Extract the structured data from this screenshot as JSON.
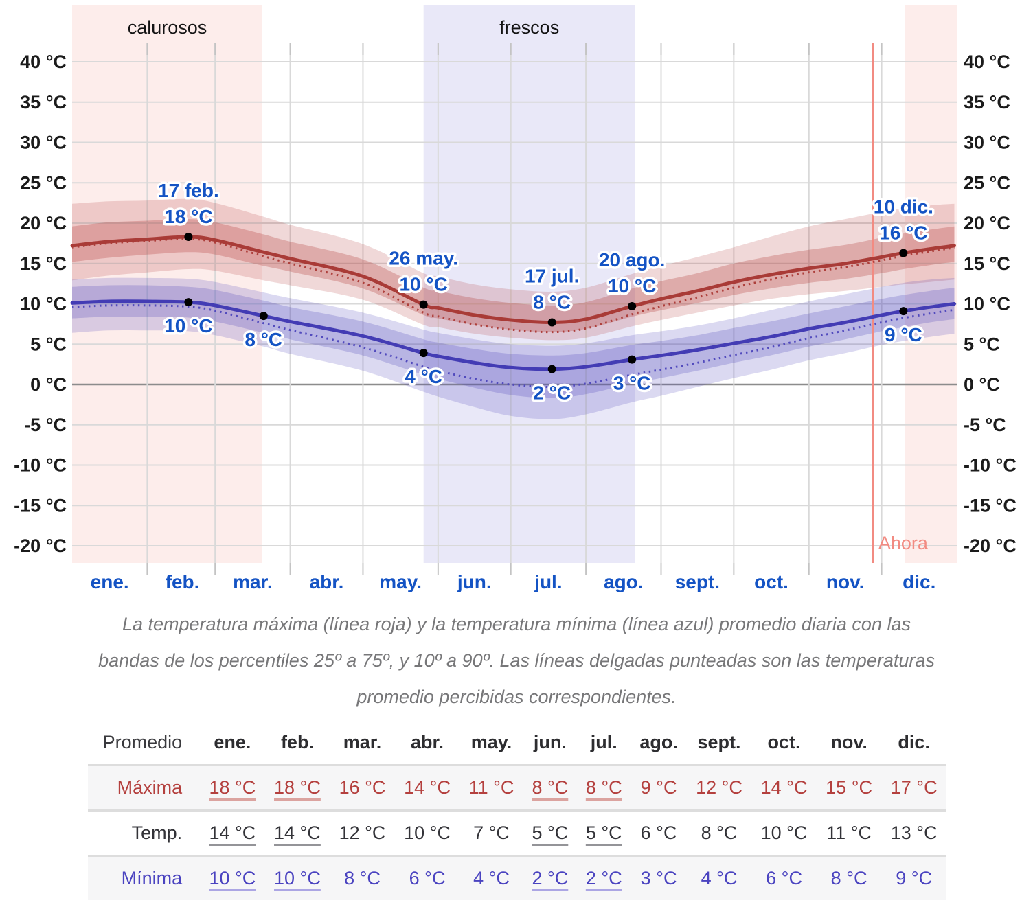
{
  "colors": {
    "max_line": "#a93b37",
    "max_dotted": "#ad3f3b",
    "max_band": "#b23e3a",
    "min_line": "#433cb4",
    "min_dotted": "#514abd",
    "min_band": "#4a43b8",
    "warm_season_bg": "#fdedeb",
    "cool_season_bg": "#e9e8f8",
    "link_blue": "#1453c4",
    "now_line": "#f28b82",
    "grid": "#d9d9d9",
    "grid_zero": "#8c8c8c",
    "tick": "#c4c4c4",
    "axis_text": "#1b1b1b",
    "caption_gray": "#777779",
    "table_maxima": "#b4403e",
    "table_temp": "#333338",
    "table_minima": "#4a43c0"
  },
  "chart_data": {
    "type": "line",
    "title": "",
    "x": {
      "unit": "day_of_year",
      "months": [
        "ene.",
        "feb.",
        "mar.",
        "abr.",
        "may.",
        "jun.",
        "jul.",
        "ago.",
        "sept.",
        "oct.",
        "nov.",
        "dic."
      ],
      "month_start_days": [
        0,
        31,
        59,
        90,
        120,
        151,
        181,
        212,
        243,
        273,
        304,
        334
      ],
      "month_mid_days": [
        15.5,
        45.5,
        74.5,
        105,
        135.5,
        166,
        196.5,
        227.5,
        258,
        288.5,
        319,
        349.5
      ]
    },
    "y": {
      "label": "°C",
      "min": -20,
      "max": 40,
      "tick_step": 5,
      "grid": true,
      "tick_labels": [
        "40 °C",
        "35 °C",
        "30 °C",
        "25 °C",
        "20 °C",
        "15 °C",
        "10 °C",
        "5 °C",
        "0 °C",
        "-5 °C",
        "-10 °C",
        "-15 °C",
        "-20 °C"
      ]
    },
    "days": [
      0,
      15,
      31,
      48,
      59,
      79,
      90,
      120,
      145,
      151,
      166,
      181,
      198,
      212,
      231,
      243,
      258,
      273,
      288,
      304,
      319,
      334,
      343,
      354,
      364
    ],
    "series": [
      {
        "name": "temperatura maxima",
        "mean": [
          17.2,
          17.7,
          18.0,
          18.3,
          17.9,
          16.4,
          15.6,
          13.4,
          9.9,
          9.5,
          8.6,
          8.0,
          7.7,
          8.1,
          9.7,
          10.6,
          11.6,
          12.7,
          13.6,
          14.4,
          15.0,
          15.8,
          16.3,
          16.8,
          17.2
        ],
        "perceived": [
          17.0,
          17.5,
          17.8,
          18.05,
          17.6,
          15.9,
          15.0,
          12.6,
          8.9,
          8.45,
          7.45,
          6.8,
          6.5,
          6.95,
          8.7,
          9.7,
          10.8,
          12.0,
          13.0,
          13.9,
          14.55,
          15.4,
          15.95,
          16.5,
          16.95
        ],
        "p75": [
          19.6,
          20.1,
          20.3,
          20.5,
          20.1,
          18.6,
          17.7,
          15.5,
          12.0,
          11.6,
          10.7,
          10.1,
          9.8,
          10.2,
          11.9,
          12.8,
          13.8,
          15.0,
          15.9,
          16.7,
          17.3,
          18.2,
          18.7,
          19.2,
          19.6
        ],
        "p25": [
          15.2,
          15.7,
          16.1,
          16.4,
          16.1,
          14.7,
          14.0,
          11.9,
          8.6,
          8.2,
          7.4,
          6.8,
          6.5,
          6.9,
          8.4,
          9.2,
          10.1,
          11.1,
          11.9,
          12.6,
          13.1,
          13.8,
          14.3,
          14.8,
          15.2
        ],
        "p90": [
          22.4,
          22.7,
          22.8,
          23.0,
          22.5,
          20.8,
          19.8,
          17.4,
          13.8,
          13.4,
          12.4,
          11.8,
          11.5,
          12.0,
          13.7,
          14.7,
          15.8,
          17.0,
          18.3,
          19.6,
          20.5,
          21.4,
          21.8,
          22.2,
          22.4
        ],
        "p10": [
          12.9,
          13.5,
          13.9,
          14.3,
          14.1,
          12.9,
          12.3,
          10.5,
          7.4,
          7.1,
          6.3,
          5.8,
          5.5,
          5.8,
          7.2,
          8.0,
          8.9,
          9.8,
          10.6,
          11.2,
          11.6,
          12.1,
          12.4,
          12.7,
          13.0
        ]
      },
      {
        "name": "temperatura minima",
        "mean": [
          10.1,
          10.3,
          10.3,
          10.2,
          9.8,
          8.5,
          7.8,
          6.0,
          3.9,
          3.5,
          2.7,
          2.1,
          1.9,
          2.2,
          3.1,
          3.6,
          4.3,
          5.1,
          5.9,
          6.9,
          7.7,
          8.6,
          9.1,
          9.6,
          10.0
        ],
        "perceived": [
          9.6,
          9.8,
          9.8,
          9.65,
          9.15,
          7.6,
          6.75,
          4.6,
          2.2,
          1.7,
          0.7,
          0.0,
          -0.3,
          0.1,
          1.2,
          1.85,
          2.7,
          3.65,
          4.6,
          5.75,
          6.7,
          7.7,
          8.25,
          8.8,
          9.25
        ],
        "p75": [
          12.1,
          12.3,
          12.3,
          12.1,
          11.7,
          10.4,
          9.6,
          7.8,
          5.6,
          5.2,
          4.4,
          3.8,
          3.6,
          3.9,
          4.9,
          5.4,
          6.1,
          7.0,
          7.8,
          8.8,
          9.7,
          10.6,
          11.1,
          11.6,
          12.0
        ],
        "p25": [
          8.2,
          8.4,
          8.4,
          8.3,
          7.8,
          6.4,
          5.6,
          3.6,
          1.2,
          0.7,
          -0.4,
          -1.3,
          -1.7,
          -1.2,
          0.1,
          0.8,
          1.7,
          2.7,
          3.6,
          4.7,
          5.6,
          6.6,
          7.1,
          7.7,
          8.1
        ],
        "p90": [
          13.0,
          13.2,
          13.2,
          13.1,
          12.7,
          11.4,
          10.7,
          8.9,
          6.8,
          6.4,
          5.6,
          5.0,
          4.8,
          5.1,
          6.1,
          6.6,
          7.3,
          8.2,
          9.2,
          10.3,
          11.2,
          12.1,
          12.6,
          13.0,
          13.2
        ],
        "p10": [
          6.4,
          6.7,
          6.7,
          6.6,
          6.1,
          4.7,
          3.8,
          1.7,
          -0.9,
          -1.5,
          -2.8,
          -3.9,
          -4.3,
          -3.7,
          -2.2,
          -1.4,
          -0.3,
          0.8,
          1.8,
          3.0,
          3.9,
          4.9,
          5.4,
          5.9,
          6.3
        ]
      }
    ],
    "key_points": [
      {
        "series": 0,
        "day": 48,
        "temp": 18.3,
        "date_label": "17 feb.",
        "value_label": "18 °C",
        "pos": "above"
      },
      {
        "series": 1,
        "day": 48,
        "temp": 10.2,
        "value_label": "10 °C",
        "pos": "below"
      },
      {
        "series": 1,
        "day": 79,
        "temp": 8.5,
        "value_label": "8 °C",
        "pos": "below"
      },
      {
        "series": 0,
        "day": 145,
        "temp": 9.9,
        "date_label": "26 may.",
        "value_label": "10 °C",
        "pos": "above"
      },
      {
        "series": 1,
        "day": 145,
        "temp": 3.9,
        "value_label": "4 °C",
        "pos": "below"
      },
      {
        "series": 0,
        "day": 198,
        "temp": 7.7,
        "date_label": "17 jul.",
        "value_label": "8 °C",
        "pos": "above"
      },
      {
        "series": 1,
        "day": 198,
        "temp": 1.9,
        "value_label": "2 °C",
        "pos": "below"
      },
      {
        "series": 0,
        "day": 231,
        "temp": 9.7,
        "date_label": "20 ago.",
        "value_label": "10 °C",
        "pos": "above"
      },
      {
        "series": 1,
        "day": 231,
        "temp": 3.1,
        "value_label": "3 °C",
        "pos": "below"
      },
      {
        "series": 0,
        "day": 343,
        "temp": 16.3,
        "date_label": "10 dic.",
        "value_label": "16 °C",
        "pos": "above"
      },
      {
        "series": 1,
        "day": 343,
        "temp": 9.1,
        "value_label": "9 °C",
        "pos": "below"
      }
    ],
    "seasons": [
      {
        "label": "calurosos",
        "start_day": 0,
        "end_day": 78.5,
        "kind": "warm"
      },
      {
        "label": "frescos",
        "start_day": 145,
        "end_day": 232.3,
        "kind": "cool"
      },
      {
        "label": "",
        "start_day": 343.5,
        "end_day": 365,
        "kind": "warm"
      }
    ],
    "now_marker": {
      "day": 330.4,
      "label": "Ahora"
    },
    "bands_note": "percentiles 25-75 (inner) y 10-90 (outer)"
  },
  "caption": {
    "lines": [
      "La temperatura máxima (línea roja) y la temperatura mínima (línea azul) promedio diaria con las",
      "bandas de los percentiles 25º a 75º, y 10º a 90º. Las líneas delgadas punteadas son las temperaturas",
      "promedio percibidas correspondientes."
    ]
  },
  "table": {
    "header": [
      "Promedio",
      "ene.",
      "feb.",
      "mar.",
      "abr.",
      "may.",
      "jun.",
      "jul.",
      "ago.",
      "sept.",
      "oct.",
      "nov.",
      "dic."
    ],
    "rows": [
      {
        "label": "Máxima",
        "key": "maxima",
        "values": [
          "18 °C",
          "18 °C",
          "16 °C",
          "14 °C",
          "11 °C",
          "8 °C",
          "8 °C",
          "9 °C",
          "12 °C",
          "14 °C",
          "15 °C",
          "17 °C"
        ],
        "linked": [
          true,
          true,
          false,
          false,
          false,
          true,
          true,
          false,
          false,
          false,
          false,
          false
        ]
      },
      {
        "label": "Temp.",
        "key": "temp",
        "values": [
          "14 °C",
          "14 °C",
          "12 °C",
          "10 °C",
          "7 °C",
          "5 °C",
          "5 °C",
          "6 °C",
          "8 °C",
          "10 °C",
          "11 °C",
          "13 °C"
        ],
        "linked": [
          true,
          true,
          false,
          false,
          false,
          true,
          true,
          false,
          false,
          false,
          false,
          false
        ]
      },
      {
        "label": "Mínima",
        "key": "minima",
        "values": [
          "10 °C",
          "10 °C",
          "8 °C",
          "6 °C",
          "4 °C",
          "2 °C",
          "2 °C",
          "3 °C",
          "4 °C",
          "6 °C",
          "8 °C",
          "9 °C"
        ],
        "linked": [
          true,
          true,
          false,
          false,
          false,
          true,
          true,
          false,
          false,
          false,
          false,
          false
        ]
      }
    ]
  }
}
